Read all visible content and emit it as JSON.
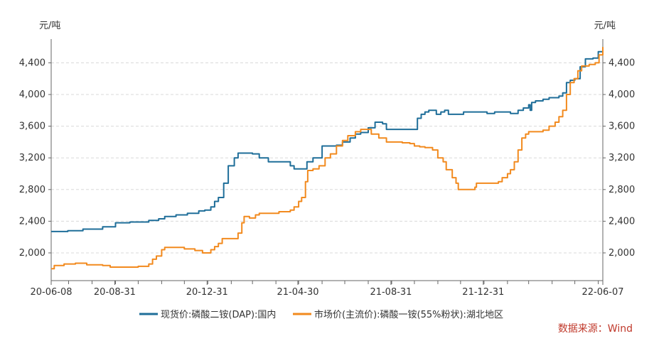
{
  "chart_data": {
    "type": "line",
    "ylabel_left": "元/吨",
    "ylabel_right": "元/吨",
    "ylim": [
      1650,
      4700
    ],
    "yticks": [
      2000,
      2400,
      2800,
      3200,
      3600,
      4000,
      4400
    ],
    "xlim": [
      "2020-06-08",
      "2022-06-07"
    ],
    "xticks": [
      {
        "date": "2020-06-08",
        "label": "20-06-08"
      },
      {
        "date": "2020-08-31",
        "label": "20-08-31"
      },
      {
        "date": "2020-12-31",
        "label": "20-12-31"
      },
      {
        "date": "2021-04-30",
        "label": "21-04-30"
      },
      {
        "date": "2021-08-31",
        "label": "21-08-31"
      },
      {
        "date": "2021-12-31",
        "label": "21-12-31"
      },
      {
        "date": "2022-06-07",
        "label": "22-06-07"
      }
    ],
    "grid": true,
    "legend_position": "bottom",
    "colors": {
      "series1": "#1f6e99",
      "series2": "#f28a1e",
      "axis": "#666666",
      "grid": "#d9d9d9",
      "source": "#c0392b"
    },
    "source_text": "数据来源：Wind",
    "series": [
      {
        "name": "现货价:磷酸二铵(DAP):国内",
        "step": true,
        "points": [
          [
            "2020-06-08",
            2270
          ],
          [
            "2020-06-30",
            2280
          ],
          [
            "2020-07-20",
            2300
          ],
          [
            "2020-08-15",
            2330
          ],
          [
            "2020-09-01",
            2380
          ],
          [
            "2020-09-20",
            2390
          ],
          [
            "2020-10-15",
            2410
          ],
          [
            "2020-10-28",
            2430
          ],
          [
            "2020-11-05",
            2460
          ],
          [
            "2020-11-20",
            2480
          ],
          [
            "2020-12-05",
            2500
          ],
          [
            "2020-12-20",
            2530
          ],
          [
            "2020-12-28",
            2540
          ],
          [
            "2021-01-05",
            2580
          ],
          [
            "2021-01-10",
            2650
          ],
          [
            "2021-01-15",
            2700
          ],
          [
            "2021-01-22",
            2880
          ],
          [
            "2021-01-28",
            3100
          ],
          [
            "2021-02-05",
            3200
          ],
          [
            "2021-02-10",
            3260
          ],
          [
            "2021-03-01",
            3250
          ],
          [
            "2021-03-10",
            3200
          ],
          [
            "2021-03-22",
            3150
          ],
          [
            "2021-04-08",
            3150
          ],
          [
            "2021-04-20",
            3100
          ],
          [
            "2021-04-25",
            3060
          ],
          [
            "2021-05-05",
            3060
          ],
          [
            "2021-05-12",
            3150
          ],
          [
            "2021-05-20",
            3200
          ],
          [
            "2021-06-01",
            3350
          ],
          [
            "2021-06-20",
            3360
          ],
          [
            "2021-06-28",
            3400
          ],
          [
            "2021-07-08",
            3450
          ],
          [
            "2021-07-15",
            3500
          ],
          [
            "2021-07-22",
            3520
          ],
          [
            "2021-08-01",
            3580
          ],
          [
            "2021-08-10",
            3650
          ],
          [
            "2021-08-20",
            3630
          ],
          [
            "2021-08-25",
            3560
          ],
          [
            "2021-09-10",
            3560
          ],
          [
            "2021-09-20",
            3560
          ],
          [
            "2021-10-05",
            3700
          ],
          [
            "2021-10-10",
            3750
          ],
          [
            "2021-10-15",
            3780
          ],
          [
            "2021-10-20",
            3800
          ],
          [
            "2021-10-30",
            3750
          ],
          [
            "2021-11-05",
            3780
          ],
          [
            "2021-11-10",
            3800
          ],
          [
            "2021-11-15",
            3750
          ],
          [
            "2021-12-01",
            3750
          ],
          [
            "2021-12-05",
            3780
          ],
          [
            "2022-01-05",
            3760
          ],
          [
            "2022-01-15",
            3780
          ],
          [
            "2022-02-05",
            3760
          ],
          [
            "2022-02-15",
            3800
          ],
          [
            "2022-02-22",
            3830
          ],
          [
            "2022-03-01",
            3870
          ],
          [
            "2022-03-03",
            3800
          ],
          [
            "2022-03-05",
            3900
          ],
          [
            "2022-03-10",
            3920
          ],
          [
            "2022-03-20",
            3940
          ],
          [
            "2022-03-28",
            3960
          ],
          [
            "2022-04-10",
            3980
          ],
          [
            "2022-04-15",
            4020
          ],
          [
            "2022-04-20",
            4150
          ],
          [
            "2022-04-25",
            4180
          ],
          [
            "2022-05-01",
            4200
          ],
          [
            "2022-05-08",
            4350
          ],
          [
            "2022-05-15",
            4450
          ],
          [
            "2022-05-25",
            4460
          ],
          [
            "2022-06-01",
            4540
          ],
          [
            "2022-06-07",
            4580
          ]
        ]
      },
      {
        "name": "市场价(主流价):磷酸一铵(55%粉状):湖北地区",
        "step": true,
        "points": [
          [
            "2020-06-08",
            1800
          ],
          [
            "2020-06-12",
            1840
          ],
          [
            "2020-06-25",
            1860
          ],
          [
            "2020-07-10",
            1870
          ],
          [
            "2020-07-25",
            1850
          ],
          [
            "2020-08-15",
            1840
          ],
          [
            "2020-08-25",
            1820
          ],
          [
            "2020-09-20",
            1820
          ],
          [
            "2020-10-01",
            1830
          ],
          [
            "2020-10-15",
            1860
          ],
          [
            "2020-10-20",
            1920
          ],
          [
            "2020-10-25",
            1960
          ],
          [
            "2020-11-01",
            2040
          ],
          [
            "2020-11-05",
            2070
          ],
          [
            "2020-12-01",
            2050
          ],
          [
            "2020-12-15",
            2030
          ],
          [
            "2020-12-25",
            2000
          ],
          [
            "2021-01-05",
            2040
          ],
          [
            "2021-01-10",
            2080
          ],
          [
            "2021-01-15",
            2120
          ],
          [
            "2021-01-20",
            2180
          ],
          [
            "2021-02-10",
            2250
          ],
          [
            "2021-02-15",
            2380
          ],
          [
            "2021-02-18",
            2460
          ],
          [
            "2021-02-25",
            2440
          ],
          [
            "2021-03-05",
            2480
          ],
          [
            "2021-03-10",
            2500
          ],
          [
            "2021-04-05",
            2520
          ],
          [
            "2021-04-20",
            2540
          ],
          [
            "2021-04-25",
            2580
          ],
          [
            "2021-05-01",
            2650
          ],
          [
            "2021-05-05",
            2700
          ],
          [
            "2021-05-10",
            2900
          ],
          [
            "2021-05-13",
            3040
          ],
          [
            "2021-05-20",
            3060
          ],
          [
            "2021-05-28",
            3100
          ],
          [
            "2021-06-05",
            3200
          ],
          [
            "2021-06-12",
            3250
          ],
          [
            "2021-06-20",
            3350
          ],
          [
            "2021-06-28",
            3420
          ],
          [
            "2021-07-05",
            3480
          ],
          [
            "2021-07-15",
            3530
          ],
          [
            "2021-07-22",
            3560
          ],
          [
            "2021-08-05",
            3500
          ],
          [
            "2021-08-15",
            3450
          ],
          [
            "2021-08-25",
            3400
          ],
          [
            "2021-09-15",
            3390
          ],
          [
            "2021-09-25",
            3380
          ],
          [
            "2021-10-01",
            3350
          ],
          [
            "2021-10-08",
            3340
          ],
          [
            "2021-10-15",
            3330
          ],
          [
            "2021-10-25",
            3300
          ],
          [
            "2021-11-01",
            3200
          ],
          [
            "2021-11-08",
            3150
          ],
          [
            "2021-11-12",
            3050
          ],
          [
            "2021-11-20",
            2950
          ],
          [
            "2021-11-25",
            2880
          ],
          [
            "2021-11-28",
            2800
          ],
          [
            "2021-12-12",
            2800
          ],
          [
            "2021-12-20",
            2830
          ],
          [
            "2021-12-22",
            2880
          ],
          [
            "2022-01-20",
            2900
          ],
          [
            "2022-01-25",
            2950
          ],
          [
            "2022-02-01",
            3000
          ],
          [
            "2022-02-05",
            3050
          ],
          [
            "2022-02-10",
            3150
          ],
          [
            "2022-02-15",
            3300
          ],
          [
            "2022-02-20",
            3450
          ],
          [
            "2022-02-25",
            3500
          ],
          [
            "2022-03-01",
            3530
          ],
          [
            "2022-03-20",
            3550
          ],
          [
            "2022-03-28",
            3600
          ],
          [
            "2022-04-05",
            3650
          ],
          [
            "2022-04-10",
            3720
          ],
          [
            "2022-04-15",
            3800
          ],
          [
            "2022-04-20",
            4000
          ],
          [
            "2022-04-25",
            4150
          ],
          [
            "2022-04-30",
            4200
          ],
          [
            "2022-05-05",
            4300
          ],
          [
            "2022-05-10",
            4360
          ],
          [
            "2022-05-20",
            4380
          ],
          [
            "2022-05-28",
            4400
          ],
          [
            "2022-06-02",
            4500
          ],
          [
            "2022-06-07",
            4600
          ]
        ]
      }
    ]
  }
}
